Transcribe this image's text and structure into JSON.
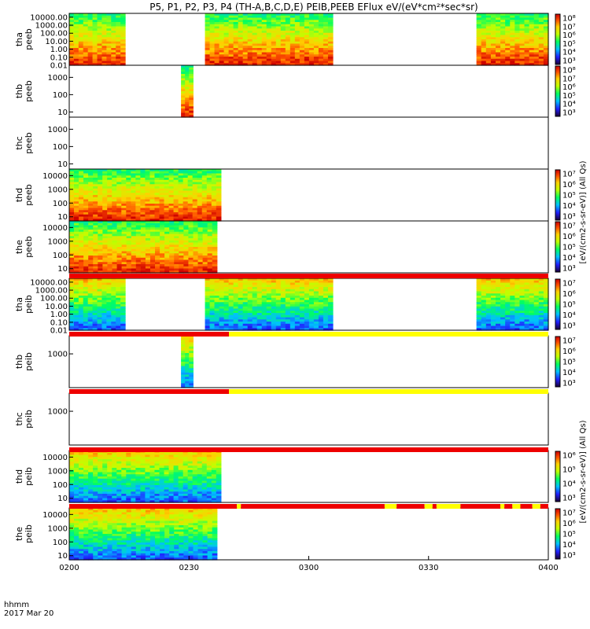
{
  "title": "P5, P1, P2, P3, P4 (TH-A,B,C,D,E) PEIB,PEEB EFlux eV/(eV*cm²*sec*sr)",
  "colorbar_labels": {
    "eeb": "[eV/(cm2-s-sr-eV)] (All Qs)",
    "eib": "[eV/(cm2-s-sr-eV)] (All Qs)"
  },
  "bottom_axis": {
    "label_line1": "hhmm",
    "label_line2": "2017 Mar 20",
    "ticks": [
      "0200",
      "0230",
      "0300",
      "0330",
      "0400"
    ]
  },
  "colors": {
    "status_red": "#ee0000",
    "status_yellow": "#ffff00",
    "frame": "#000000"
  },
  "chart_data": [
    {
      "type": "heatmap",
      "probe": "tha",
      "instrument": "peeb",
      "panel_label": [
        "tha",
        "peeb"
      ],
      "y_scale": "log",
      "ylim": [
        0.01,
        30000
      ],
      "y_ticks": [
        "10000.00",
        "1000.00",
        "100.00",
        "10.00",
        "1.00",
        "0.10",
        "0.01"
      ],
      "colorbar_ticks": [
        "10⁸",
        "10⁷",
        "10⁶",
        "10⁵",
        "10⁴",
        "10³"
      ],
      "coverage_hhmm": [
        [
          "0200",
          "0214"
        ],
        [
          "0234",
          "0306"
        ],
        [
          "0342",
          "0400"
        ]
      ]
    },
    {
      "type": "heatmap",
      "probe": "thb",
      "instrument": "peeb",
      "panel_label": [
        "thb",
        "peeb"
      ],
      "y_scale": "log",
      "ylim": [
        5,
        5000
      ],
      "y_ticks": [
        "1000",
        "100",
        "10"
      ],
      "colorbar_ticks": [
        "10⁸",
        "10⁷",
        "10⁶",
        "10⁵",
        "10⁴",
        "10³"
      ],
      "coverage_hhmm": [
        [
          "0228",
          "0231"
        ]
      ]
    },
    {
      "type": "heatmap",
      "probe": "thc",
      "instrument": "peeb",
      "panel_label": [
        "thc",
        "peeb"
      ],
      "y_scale": "log",
      "ylim": [
        5,
        5000
      ],
      "y_ticks": [
        "1000",
        "100",
        "10"
      ],
      "colorbar_ticks": [],
      "coverage_hhmm": []
    },
    {
      "type": "heatmap",
      "probe": "thd",
      "instrument": "peeb",
      "panel_label": [
        "thd",
        "peeb"
      ],
      "y_scale": "log",
      "ylim": [
        5,
        30000
      ],
      "y_ticks": [
        "10000",
        "1000",
        "100",
        "10"
      ],
      "colorbar_ticks": [
        "10⁷",
        "10⁶",
        "10⁵",
        "10⁴",
        "10³"
      ],
      "coverage_hhmm": [
        [
          "0200",
          "0238"
        ]
      ]
    },
    {
      "type": "heatmap",
      "probe": "the",
      "instrument": "peeb",
      "panel_label": [
        "the",
        "peeb"
      ],
      "y_scale": "log",
      "ylim": [
        5,
        30000
      ],
      "y_ticks": [
        "10000",
        "1000",
        "100",
        "10"
      ],
      "colorbar_ticks": [
        "10⁷",
        "10⁶",
        "10⁵",
        "10⁴",
        "10³"
      ],
      "coverage_hhmm": [
        [
          "0200",
          "0237"
        ]
      ]
    },
    {
      "type": "heatmap",
      "probe": "tha",
      "instrument": "peib",
      "panel_label": [
        "tha",
        "peib"
      ],
      "y_scale": "log",
      "ylim": [
        0.01,
        30000
      ],
      "y_ticks": [
        "10000.00",
        "1000.00",
        "100.00",
        "10.00",
        "1.00",
        "0.10",
        "0.01"
      ],
      "colorbar_ticks": [
        "10⁷",
        "10⁶",
        "10⁵",
        "10⁴",
        "10³"
      ],
      "coverage_hhmm": [
        [
          "0200",
          "0214"
        ],
        [
          "0234",
          "0306"
        ],
        [
          "0342",
          "0400"
        ]
      ]
    },
    {
      "type": "heatmap",
      "probe": "thb",
      "instrument": "peib",
      "panel_label": [
        "thb",
        "peib"
      ],
      "y_scale": "log",
      "ylim": [
        50,
        5000
      ],
      "y_ticks": [
        "1000"
      ],
      "colorbar_ticks": [
        "10⁷",
        "10⁶",
        "10⁵",
        "10⁴",
        "10³"
      ],
      "coverage_hhmm": [
        [
          "0228",
          "0231"
        ]
      ]
    },
    {
      "type": "heatmap",
      "probe": "thc",
      "instrument": "peib",
      "panel_label": [
        "thc",
        "peib"
      ],
      "y_scale": "log",
      "ylim": [
        50,
        5000
      ],
      "y_ticks": [
        "1000"
      ],
      "colorbar_ticks": [],
      "coverage_hhmm": []
    },
    {
      "type": "heatmap",
      "probe": "thd",
      "instrument": "peib",
      "panel_label": [
        "thd",
        "peib"
      ],
      "y_scale": "log",
      "ylim": [
        5,
        30000
      ],
      "y_ticks": [
        "10000",
        "1000",
        "100",
        "10"
      ],
      "colorbar_ticks": [
        "10⁶",
        "10⁵",
        "10⁴",
        "10³"
      ],
      "coverage_hhmm": [
        [
          "0200",
          "0238"
        ]
      ]
    },
    {
      "type": "heatmap",
      "probe": "the",
      "instrument": "peib",
      "panel_label": [
        "the",
        "peib"
      ],
      "y_scale": "log",
      "ylim": [
        5,
        30000
      ],
      "y_ticks": [
        "10000",
        "1000",
        "100",
        "10"
      ],
      "colorbar_ticks": [
        "10⁷",
        "10⁶",
        "10⁵",
        "10⁴",
        "10³"
      ],
      "coverage_hhmm": [
        [
          "0200",
          "0237"
        ]
      ]
    }
  ],
  "status_bars": [
    {
      "after_panel": 4,
      "segments": [
        {
          "from": "0200",
          "to": "0400",
          "color": "red"
        }
      ]
    },
    {
      "after_panel": 5,
      "segments": [
        {
          "from": "0200",
          "to": "0240",
          "color": "red"
        },
        {
          "from": "0240",
          "to": "0400",
          "color": "yellow"
        }
      ]
    },
    {
      "after_panel": 6,
      "segments": [
        {
          "from": "0200",
          "to": "0240",
          "color": "red"
        },
        {
          "from": "0240",
          "to": "0400",
          "color": "yellow"
        }
      ]
    },
    {
      "after_panel": 7,
      "segments": [
        {
          "from": "0200",
          "to": "0400",
          "color": "red"
        }
      ]
    },
    {
      "after_panel": 8,
      "segments": [
        {
          "from": "0200",
          "to": "0242",
          "color": "red"
        },
        {
          "from": "0242",
          "to": "0243",
          "color": "yellow"
        },
        {
          "from": "0243",
          "to": "0319",
          "color": "red"
        },
        {
          "from": "0319",
          "to": "0322",
          "color": "yellow"
        },
        {
          "from": "0322",
          "to": "0329",
          "color": "red"
        },
        {
          "from": "0329",
          "to": "0331",
          "color": "yellow"
        },
        {
          "from": "0331",
          "to": "0332",
          "color": "red"
        },
        {
          "from": "0332",
          "to": "0338",
          "color": "yellow"
        },
        {
          "from": "0338",
          "to": "0348",
          "color": "red"
        },
        {
          "from": "0348",
          "to": "0349",
          "color": "yellow"
        },
        {
          "from": "0349",
          "to": "0351",
          "color": "red"
        },
        {
          "from": "0351",
          "to": "0353",
          "color": "yellow"
        },
        {
          "from": "0353",
          "to": "0356",
          "color": "red"
        },
        {
          "from": "0356",
          "to": "0358",
          "color": "yellow"
        },
        {
          "from": "0358",
          "to": "0400",
          "color": "red"
        }
      ]
    }
  ]
}
